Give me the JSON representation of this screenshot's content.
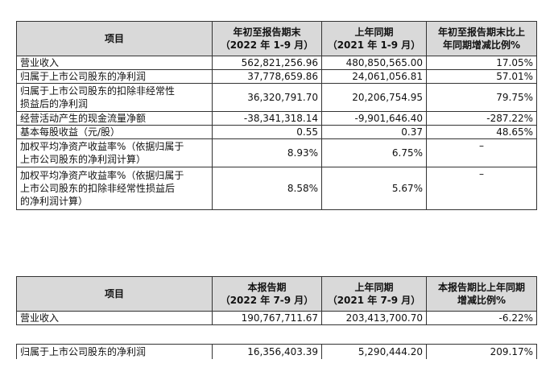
{
  "table1": {
    "headers": [
      "项目",
      "年初至报告期末\n（2022 年 1-9 月）",
      "上年同期\n（2021 年 1-9 月）",
      "年初至报告期末比上\n年同期增减比例%"
    ],
    "rows": [
      {
        "label": "营业收入",
        "a": "562,821,256.96",
        "b": "480,850,565.00",
        "c": "17.05%"
      },
      {
        "label": "归属于上市公司股东的净利润",
        "a": "37,778,659.86",
        "b": "24,061,056.81",
        "c": "57.01%"
      },
      {
        "label": "归属于上市公司股东的扣除非经常性\n损益后的净利润",
        "a": "36,320,791.70",
        "b": "20,206,754.95",
        "c": "79.75%"
      },
      {
        "label": "经营活动产生的现金流量净额",
        "a": "-38,341,318.14",
        "b": "-9,901,646.40",
        "c": "-287.22%"
      },
      {
        "label": "基本每股收益（元/股）",
        "a": "0.55",
        "b": "0.37",
        "c": "48.65%"
      },
      {
        "label": "加权平均净资产收益率%（依据归属于\n上市公司股东的净利润计算）",
        "a": "8.93%",
        "b": "6.75%",
        "c": "–"
      },
      {
        "label": "加权平均净资产收益率%（依据归属于\n上市公司股东的扣除非经常性损益后\n的净利润计算）",
        "a": "8.58%",
        "b": "5.67%",
        "c": "–"
      }
    ]
  },
  "table2": {
    "headers": [
      "项目",
      "本报告期\n（2022 年 7-9 月）",
      "上年同期\n（2021 年 7-9 月）",
      "本报告期比上年同期\n增减比例%"
    ],
    "rows": [
      {
        "label": "营业收入",
        "a": "190,767,711.67",
        "b": "203,413,700.70",
        "c": "-6.22%"
      }
    ]
  },
  "table3": {
    "rows": [
      {
        "label": "归属于上市公司股东的净利润",
        "a": "16,356,403.39",
        "b": "5,290,444.20",
        "c": "209.17%"
      }
    ]
  }
}
